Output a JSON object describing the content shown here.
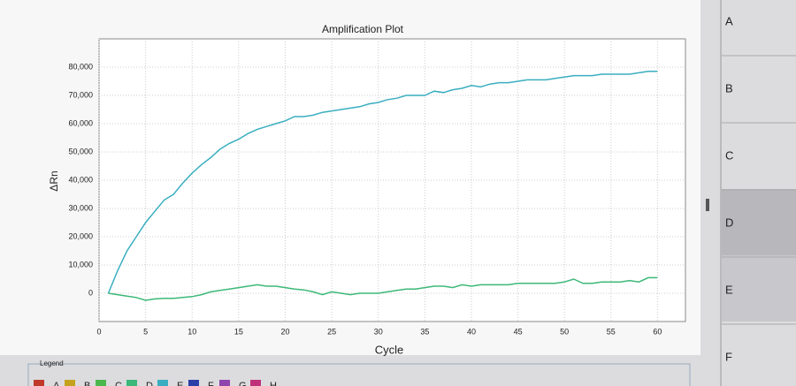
{
  "chart_data": {
    "type": "line",
    "title": "Amplification Plot",
    "x_label": "Cycle",
    "y_label": "ΔRn",
    "x": [
      1,
      2,
      3,
      4,
      5,
      6,
      7,
      8,
      9,
      10,
      11,
      12,
      13,
      14,
      15,
      16,
      17,
      18,
      19,
      20,
      21,
      22,
      23,
      24,
      25,
      26,
      27,
      28,
      29,
      30,
      31,
      32,
      33,
      34,
      35,
      36,
      37,
      38,
      39,
      40,
      41,
      42,
      43,
      44,
      45,
      46,
      47,
      48,
      49,
      50,
      51,
      52,
      53,
      54,
      55,
      56,
      57,
      58,
      59,
      60
    ],
    "series": [
      {
        "color": "#3aaec0",
        "values": [
          0,
          8000,
          15000,
          20000,
          25000,
          29000,
          33000,
          35000,
          39000,
          42500,
          45500,
          48000,
          51000,
          53000,
          54500,
          56500,
          58000,
          59000,
          60000,
          61000,
          62500,
          62500,
          63000,
          64000,
          64500,
          65000,
          65500,
          66000,
          67000,
          67500,
          68500,
          69000,
          70000,
          70000,
          70000,
          71500,
          71000,
          72000,
          72500,
          73500,
          73000,
          74000,
          74500,
          74500,
          75000,
          75500,
          75500,
          75500,
          76000,
          76500,
          77000,
          77000,
          77000,
          77500,
          77500,
          77500,
          77500,
          78000,
          78500,
          78500
        ]
      },
      {
        "color": "#3cb878",
        "values": [
          0,
          -500,
          -1000,
          -1500,
          -2500,
          -2000,
          -1800,
          -1800,
          -1500,
          -1200,
          -500,
          500,
          1000,
          1500,
          2000,
          2500,
          3000,
          2500,
          2500,
          2000,
          1500,
          1200,
          500,
          -500,
          500,
          0,
          -500,
          0,
          0,
          0,
          500,
          1000,
          1500,
          1500,
          2000,
          2500,
          2500,
          2000,
          3000,
          2500,
          3000,
          3000,
          3000,
          3000,
          3500,
          3500,
          3500,
          3500,
          3500,
          4000,
          5000,
          3500,
          3500,
          4000,
          4000,
          4000,
          4500,
          4000,
          5500,
          5500
        ]
      }
    ],
    "xlim": [
      0,
      63
    ],
    "ylim": [
      -10000,
      90000
    ],
    "xticks": [
      0,
      5,
      10,
      15,
      20,
      25,
      30,
      35,
      40,
      45,
      50,
      55,
      60
    ],
    "yticks": [
      0,
      {
        "value": 10000,
        "label": "10,000"
      },
      {
        "value": 20000,
        "label": "20,000"
      },
      {
        "value": 30000,
        "label": "30,000"
      },
      {
        "value": 40000,
        "label": "40,000"
      },
      {
        "value": 50000,
        "label": "50,000"
      },
      {
        "value": 60000,
        "label": "60,000"
      },
      {
        "value": 70000,
        "label": "70,000"
      },
      {
        "value": 80000,
        "label": "80,000"
      }
    ],
    "grid": true
  },
  "legend": {
    "title": "Legend",
    "entries": [
      {
        "label": "A",
        "color": "#c0392b"
      },
      {
        "label": "B",
        "color": "#c4a21e"
      },
      {
        "label": "C",
        "color": "#4cb84c"
      },
      {
        "label": "D",
        "color": "#3cb878"
      },
      {
        "label": "E",
        "color": "#3aaec0"
      },
      {
        "label": "F",
        "color": "#2a3fa8"
      },
      {
        "label": "G",
        "color": "#8e44ad"
      },
      {
        "label": "H",
        "color": "#c0307a"
      }
    ]
  },
  "sidebar": [
    "A",
    "B",
    "C",
    "D",
    "E",
    "F"
  ]
}
